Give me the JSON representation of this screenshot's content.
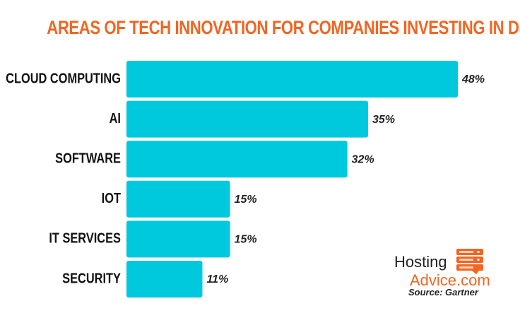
{
  "chart_data": {
    "type": "bar",
    "orientation": "horizontal",
    "title": "AREAS OF TECH INNOVATION FOR COMPANIES INVESTING IN D&A",
    "categories": [
      "CLOUD COMPUTING",
      "AI",
      "SOFTWARE",
      "IOT",
      "IT SERVICES",
      "SECURITY"
    ],
    "values": [
      48,
      35,
      32,
      15,
      15,
      11
    ],
    "value_labels": [
      "48%",
      "35%",
      "32%",
      "15%",
      "15%",
      "11%"
    ],
    "xlim": [
      0,
      48
    ],
    "grid": false,
    "legend": "none"
  },
  "colors": {
    "title": "#f26522",
    "bar": "#00c8dd",
    "category_text": "#111111",
    "value_text": "#222222",
    "brand_accent": "#f26522"
  },
  "branding": {
    "line1": "Hosting",
    "line2": "Advice.com",
    "logo_icon": "server-stack-icon"
  },
  "source": "Source: Gartner"
}
